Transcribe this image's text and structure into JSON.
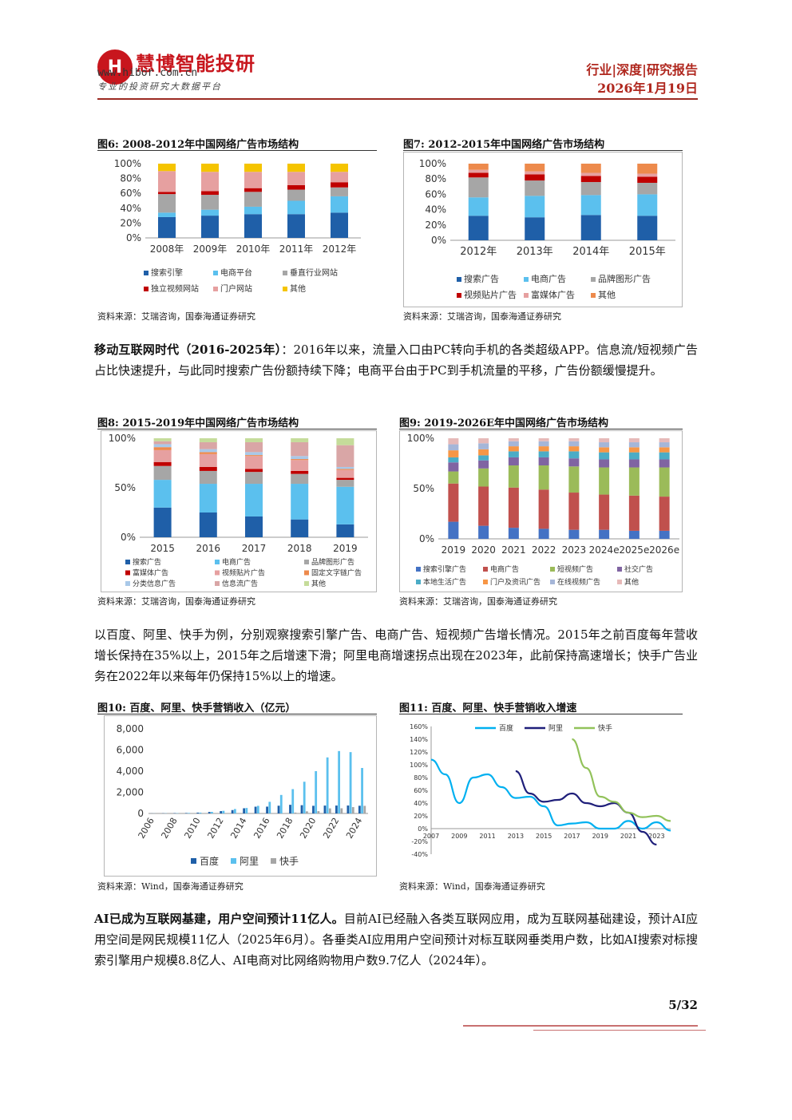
{
  "header": {
    "logo_text": "H",
    "brand": "慧博智能投研",
    "site": "www.hibor.com.cn",
    "slogan": "专业的投资研究大数据平台",
    "report_type": "行业|深度|研究报告",
    "date": "2026年1月19日"
  },
  "figures": {
    "fig6": {
      "title": "图6: 2008-2012年中国网络广告市场结构",
      "source": "资料来源：艾瑞咨询，国泰海通证券研究"
    },
    "fig7": {
      "title": "图7: 2012-2015年中国网络广告市场结构",
      "source": "资料来源：艾瑞咨询，国泰海通证券研究"
    },
    "fig8": {
      "title": "图8: 2015-2019年中国网络广告市场结构",
      "source": "资料来源：艾瑞咨询，国泰海通证券研究"
    },
    "fig9": {
      "title": "图9: 2019-2026E年中国网络广告市场结构",
      "source": "资料来源：艾瑞咨询，国泰海通证券研究"
    },
    "fig10": {
      "title": "图10: 百度、阿里、快手营销收入（亿元）",
      "source": "资料来源：Wind，国泰海通证券研究"
    },
    "fig11": {
      "title": "图11: 百度、阿里、快手营销收入增速",
      "source": "资料来源：Wind，国泰海通证券研究"
    }
  },
  "paragraphs": {
    "p1_bold": "移动互联网时代（2016-2025年）",
    "p1_text": "：2016年以来，流量入口由PC转向手机的各类超级APP。信息流/短视频广告占比快速提升，与此同时搜索广告份额持续下降；电商平台由于PC到手机流量的平移，广告份额缓慢提升。",
    "p2_text": "以百度、阿里、快手为例，分别观察搜索引擎广告、电商广告、短视频广告增长情况。2015年之前百度每年营收增长保持在35%以上，2015年之后增速下滑；阿里电商增速拐点出现在2023年，此前保持高速增长；快手广告业务在2022年以来每年仍保持15%以上的增速。",
    "p3_bold": "AI已成为互联网基建，用户空间预计11亿人。",
    "p3_text": "目前AI已经融入各类互联网应用，成为互联网基础建设，预计AI应用空间是网民规模11亿人（2025年6月）。各垂类AI应用用户空间预计对标互联网垂类用户数，比如AI搜索对标搜索引擎用户规模8.8亿人、AI电商对比网络购物用户数9.7亿人（2024年）。"
  },
  "page_number": "5/32",
  "chart_data": [
    {
      "id": "fig6",
      "type": "bar",
      "stacked": true,
      "categories": [
        "2008年",
        "2009年",
        "2010年",
        "2011年",
        "2012年"
      ],
      "yticks": [
        "0%",
        "20%",
        "40%",
        "60%",
        "80%",
        "100%"
      ],
      "ylim": [
        0,
        100
      ],
      "series": [
        {
          "name": "搜索引擎",
          "color": "#1f5fa8",
          "values": [
            28,
            30,
            32,
            32,
            34
          ]
        },
        {
          "name": "电商平台",
          "color": "#5bc0ee",
          "values": [
            6,
            8,
            10,
            18,
            22
          ]
        },
        {
          "name": "垂直行业网站",
          "color": "#a6a6a6",
          "values": [
            25,
            20,
            20,
            15,
            12
          ]
        },
        {
          "name": "独立视频网站",
          "color": "#c00000",
          "values": [
            3,
            5,
            5,
            6,
            7
          ]
        },
        {
          "name": "门户网站",
          "color": "#e6a0a0",
          "values": [
            28,
            26,
            22,
            18,
            14
          ]
        },
        {
          "name": "其他",
          "color": "#f5c400",
          "values": [
            10,
            11,
            11,
            11,
            11
          ]
        }
      ]
    },
    {
      "id": "fig7",
      "type": "bar",
      "stacked": true,
      "categories": [
        "2012年",
        "2013年",
        "2014年",
        "2015年"
      ],
      "yticks": [
        "0%",
        "20%",
        "40%",
        "60%",
        "80%",
        "100%"
      ],
      "ylim": [
        0,
        100
      ],
      "series": [
        {
          "name": "搜索广告",
          "color": "#1f5fa8",
          "values": [
            32,
            30,
            33,
            32
          ]
        },
        {
          "name": "电商广告",
          "color": "#5bc0ee",
          "values": [
            24,
            28,
            26,
            28
          ]
        },
        {
          "name": "品牌图形广告",
          "color": "#a6a6a6",
          "values": [
            26,
            20,
            17,
            15
          ]
        },
        {
          "name": "视频贴片广告",
          "color": "#c00000",
          "values": [
            6,
            8,
            8,
            8
          ]
        },
        {
          "name": "富媒体广告",
          "color": "#e6a0a0",
          "values": [
            4,
            4,
            4,
            4
          ]
        },
        {
          "name": "其他",
          "color": "#ed8a4c",
          "values": [
            8,
            10,
            12,
            13
          ]
        }
      ]
    },
    {
      "id": "fig8",
      "type": "bar",
      "stacked": true,
      "categories": [
        "2015",
        "2016",
        "2017",
        "2018",
        "2019"
      ],
      "yticks": [
        "0%",
        "50%",
        "100%"
      ],
      "ylim": [
        0,
        100
      ],
      "series": [
        {
          "name": "搜索广告",
          "color": "#1f5fa8",
          "values": [
            30,
            25,
            21,
            18,
            13
          ]
        },
        {
          "name": "电商广告",
          "color": "#5bc0ee",
          "values": [
            28,
            29,
            33,
            36,
            38
          ]
        },
        {
          "name": "品牌图形广告",
          "color": "#a6a6a6",
          "values": [
            14,
            13,
            12,
            10,
            7
          ]
        },
        {
          "name": "富媒体广告",
          "color": "#c00000",
          "values": [
            4,
            4,
            3,
            3,
            2
          ]
        },
        {
          "name": "视频贴片广告",
          "color": "#e6a0a0",
          "values": [
            12,
            13,
            13,
            11,
            8
          ]
        },
        {
          "name": "固定文字链广告",
          "color": "#ed8a4c",
          "values": [
            3,
            2,
            1,
            1,
            1
          ]
        },
        {
          "name": "分类信息广告",
          "color": "#a9c8e8",
          "values": [
            3,
            3,
            3,
            3,
            2
          ]
        },
        {
          "name": "信息流广告",
          "color": "#d9a6a6",
          "values": [
            3,
            7,
            10,
            14,
            22
          ]
        },
        {
          "name": "其他",
          "color": "#c5dc9a",
          "values": [
            3,
            4,
            4,
            4,
            7
          ]
        }
      ]
    },
    {
      "id": "fig9",
      "type": "bar",
      "stacked": true,
      "categories": [
        "2019",
        "2020",
        "2021",
        "2022",
        "2023",
        "2024e",
        "2025e",
        "2026e"
      ],
      "yticks": [
        "0%",
        "50%",
        "100%"
      ],
      "ylim": [
        0,
        100
      ],
      "series": [
        {
          "name": "搜索引擎广告",
          "color": "#4472c4",
          "values": [
            17,
            13,
            11,
            10,
            9,
            9,
            8,
            8
          ]
        },
        {
          "name": "电商广告",
          "color": "#c0504d",
          "values": [
            38,
            39,
            40,
            39,
            37,
            35,
            35,
            34
          ]
        },
        {
          "name": "短视频广告",
          "color": "#9bbb59",
          "values": [
            12,
            18,
            22,
            24,
            26,
            27,
            28,
            29
          ]
        },
        {
          "name": "社交广告",
          "color": "#8064a2",
          "values": [
            9,
            8,
            8,
            8,
            8,
            8,
            8,
            8
          ]
        },
        {
          "name": "本地生活广告",
          "color": "#4bacc6",
          "values": [
            5,
            5,
            6,
            6,
            7,
            7,
            7,
            7
          ]
        },
        {
          "name": "门户及资讯广告",
          "color": "#f79646",
          "values": [
            7,
            6,
            5,
            5,
            5,
            5,
            5,
            5
          ]
        },
        {
          "name": "在线视频广告",
          "color": "#a5b6d8",
          "values": [
            6,
            6,
            5,
            5,
            5,
            5,
            5,
            5
          ]
        },
        {
          "name": "其他",
          "color": "#e6b9b8",
          "values": [
            6,
            5,
            3,
            3,
            3,
            4,
            4,
            4
          ]
        }
      ]
    },
    {
      "id": "fig10",
      "type": "bar",
      "categories": [
        "2006",
        "2007",
        "2008",
        "2009",
        "2010",
        "2011",
        "2012",
        "2013",
        "2014",
        "2015",
        "2016",
        "2017",
        "2018",
        "2019",
        "2020",
        "2021",
        "2022",
        "2023",
        "2024"
      ],
      "xticks": [
        "2006",
        "2008",
        "2010",
        "2012",
        "2014",
        "2016",
        "2018",
        "2020",
        "2022",
        "2024"
      ],
      "yticks": [
        "0",
        "2,000",
        "4,000",
        "6,000",
        "8,000"
      ],
      "ylim": [
        0,
        8000
      ],
      "series": [
        {
          "name": "百度",
          "color": "#1f5fa8",
          "values": [
            8,
            17,
            31,
            44,
            79,
            145,
            223,
            320,
            490,
            640,
            645,
            732,
            819,
            781,
            725,
            745,
            748,
            750,
            728
          ]
        },
        {
          "name": "阿里",
          "color": "#5bc0ee",
          "values": [
            10,
            20,
            30,
            50,
            80,
            150,
            250,
            420,
            520,
            720,
            1100,
            1750,
            2300,
            3000,
            4000,
            5300,
            5900,
            5800,
            4300
          ]
        },
        {
          "name": "快手",
          "color": "#a6a6a6",
          "values": [
            0,
            0,
            0,
            0,
            0,
            0,
            0,
            0,
            0,
            0,
            0,
            20,
            85,
            200,
            220,
            480,
            490,
            600,
            720
          ]
        }
      ]
    },
    {
      "id": "fig11",
      "type": "line",
      "x": [
        "2007",
        "2008",
        "2009",
        "2010",
        "2011",
        "2012",
        "2013",
        "2014",
        "2015",
        "2016",
        "2017",
        "2018",
        "2019",
        "2020",
        "2021",
        "2022",
        "2023",
        "2024"
      ],
      "xticks": [
        "2007",
        "2009",
        "2011",
        "2013",
        "2015",
        "2017",
        "2019",
        "2021",
        "2023"
      ],
      "yticks": [
        "-40%",
        "-20%",
        "0%",
        "20%",
        "40%",
        "60%",
        "80%",
        "100%",
        "120%",
        "140%",
        "160%"
      ],
      "ylim": [
        -40,
        160
      ],
      "series": [
        {
          "name": "百度",
          "color": "#00b0f0",
          "values": [
            108,
            85,
            40,
            80,
            85,
            65,
            48,
            50,
            35,
            5,
            8,
            10,
            0,
            0,
            12,
            0,
            10,
            -3
          ]
        },
        {
          "name": "阿里",
          "color": "#1f1f7a",
          "values": [
            null,
            null,
            null,
            null,
            null,
            null,
            90,
            55,
            42,
            45,
            55,
            40,
            35,
            40,
            25,
            -5,
            -25,
            null
          ]
        },
        {
          "name": "快手",
          "color": "#92c25a",
          "values": [
            null,
            null,
            null,
            null,
            null,
            null,
            null,
            null,
            null,
            null,
            140,
            95,
            50,
            42,
            25,
            18,
            20,
            12
          ]
        }
      ]
    }
  ]
}
